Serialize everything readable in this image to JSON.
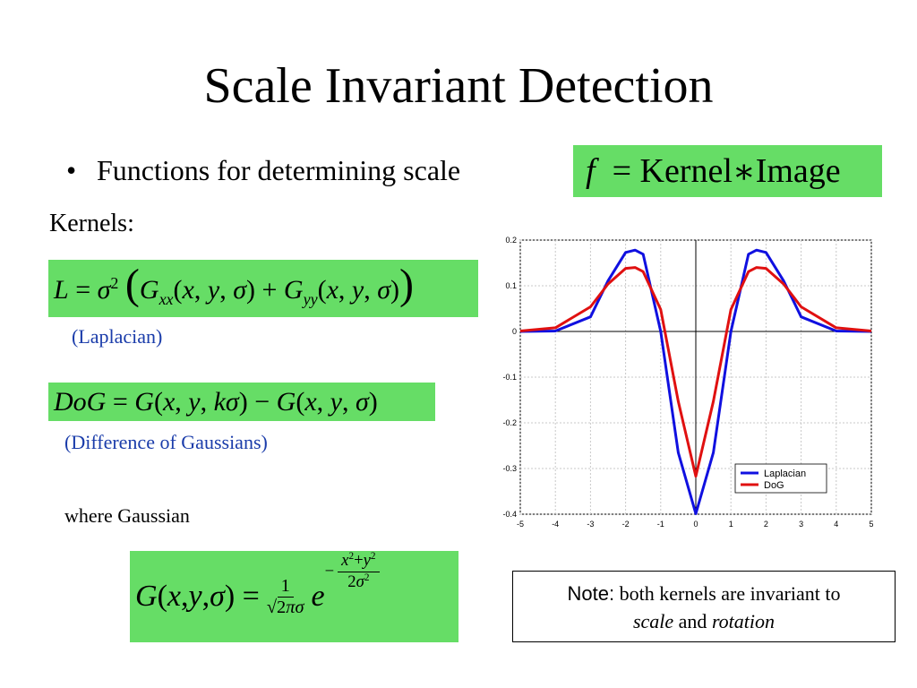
{
  "title": "Scale Invariant Detection",
  "bullet": "Functions for determining scale",
  "formula_f": {
    "lhs": "f",
    "eq": "=",
    "kernel": "Kernel",
    "op": "∗",
    "image": "Image"
  },
  "kernels_label": "Kernels:",
  "laplacian": {
    "formula_lhs": "L",
    "caption": "(Laplacian)"
  },
  "dog": {
    "caption": "(Difference of Gaussians)"
  },
  "where_text": "where Gaussian",
  "note": {
    "head": "Note:",
    "line1": "both kernels are invariant to",
    "scale": "scale",
    "and": "and",
    "rotation": "rotation"
  },
  "chart_data": {
    "type": "line",
    "xlim": [
      -5,
      5
    ],
    "ylim": [
      -0.4,
      0.2
    ],
    "x_ticks": [
      -5,
      -4,
      -3,
      -2,
      -1,
      0,
      1,
      2,
      3,
      4,
      5
    ],
    "y_ticks": [
      -0.4,
      -0.3,
      -0.2,
      -0.1,
      0,
      0.1,
      0.2
    ],
    "y_tick_labels": [
      "-0.4",
      "-0.3",
      "-0.2",
      "-0.1",
      "0",
      "0.1",
      "0.2"
    ],
    "grid": true,
    "legend_position": "bottom-right",
    "x": [
      -5,
      -4,
      -3,
      -2.5,
      -2,
      -1.73,
      -1.5,
      -1,
      -0.5,
      0,
      0.5,
      1,
      1.5,
      1.73,
      2,
      2.5,
      3,
      4,
      5
    ],
    "series": [
      {
        "name": "Laplacian",
        "color": "#1010e0",
        "values": [
          0.0,
          0.001,
          0.032,
          0.111,
          0.173,
          0.178,
          0.169,
          0.0,
          -0.265,
          -0.399,
          -0.265,
          0.0,
          0.169,
          0.178,
          0.173,
          0.111,
          0.032,
          0.001,
          0.0
        ]
      },
      {
        "name": "DoG",
        "color": "#e01010",
        "values": [
          0.001,
          0.008,
          0.054,
          0.104,
          0.138,
          0.14,
          0.131,
          0.048,
          -0.153,
          -0.317,
          -0.153,
          0.048,
          0.131,
          0.14,
          0.138,
          0.104,
          0.054,
          0.008,
          0.001
        ]
      }
    ]
  }
}
